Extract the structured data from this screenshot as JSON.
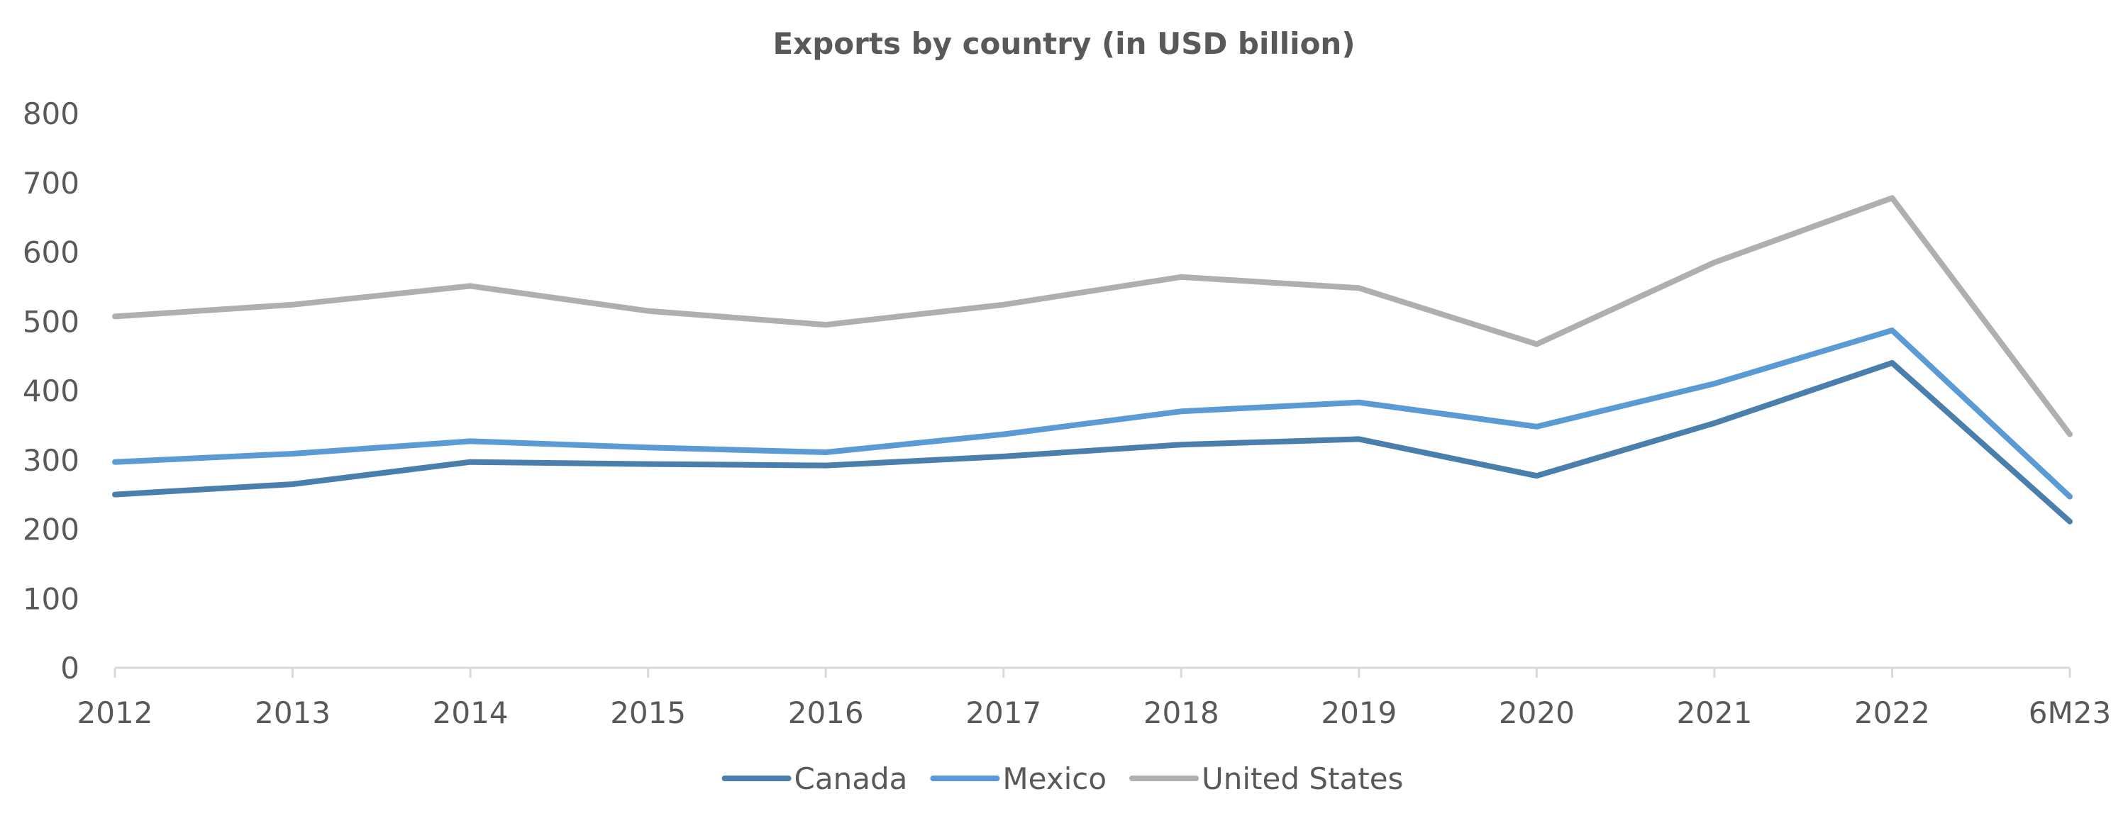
{
  "chart_data": {
    "type": "line",
    "title": "Exports by country (in USD billion)",
    "xlabel": "",
    "ylabel": "",
    "categories": [
      "2012",
      "2013",
      "2014",
      "2015",
      "2016",
      "2017",
      "2018",
      "2019",
      "2020",
      "2021",
      "2022",
      "6M23"
    ],
    "ylim": [
      0,
      800
    ],
    "yticks": [
      0,
      100,
      200,
      300,
      400,
      500,
      600,
      700,
      800
    ],
    "grid": false,
    "legend_position": "bottom",
    "series": [
      {
        "name": "Canada",
        "color": "#4a7ead",
        "values": [
          250,
          265,
          297,
          294,
          292,
          305,
          322,
          330,
          277,
          353,
          440,
          211
        ]
      },
      {
        "name": "Mexico",
        "color": "#5b9bd5",
        "values": [
          297,
          309,
          327,
          318,
          311,
          337,
          370,
          383,
          348,
          410,
          487,
          247
        ]
      },
      {
        "name": "United States",
        "color": "#b1aeb0",
        "values": [
          507,
          524,
          551,
          515,
          495,
          524,
          564,
          548,
          467,
          585,
          678,
          337
        ]
      }
    ]
  }
}
